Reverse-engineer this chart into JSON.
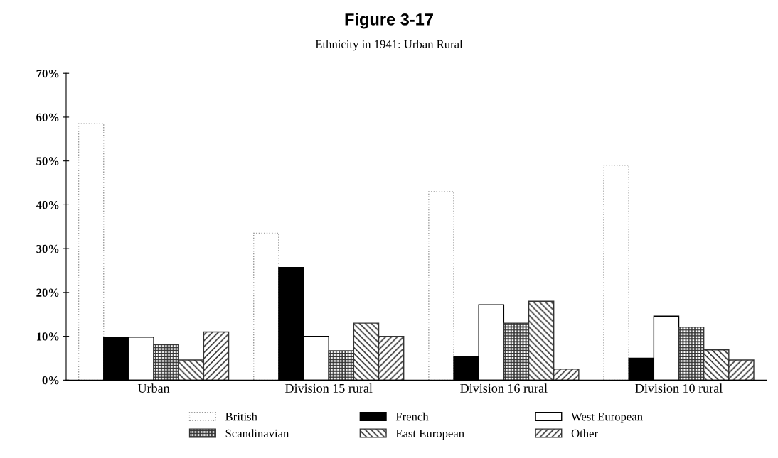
{
  "chart_data": {
    "type": "bar",
    "title": "Figure 3-17",
    "subtitle": "Ethnicity in 1941: Urban Rural",
    "categories": [
      "Urban",
      "Division 15 rural",
      "Division 16 rural",
      "Division 10 rural"
    ],
    "series": [
      {
        "name": "British",
        "color": "#ffffff",
        "values": [
          58.5,
          33.5,
          43,
          49
        ]
      },
      {
        "name": "French",
        "color": "#000000",
        "values": [
          9.8,
          25.7,
          5.3,
          5
        ]
      },
      {
        "name": "West European",
        "color": "#ffffff",
        "values": [
          9.8,
          10,
          17.2,
          14.6
        ]
      },
      {
        "name": "Scandinavian",
        "color": "#333333",
        "values": [
          8.2,
          6.7,
          13,
          12.1
        ]
      },
      {
        "name": "East European",
        "color": "#333333",
        "values": [
          4.6,
          13,
          18,
          6.9
        ]
      },
      {
        "name": "Other",
        "color": "#333333",
        "values": [
          11,
          10,
          2.5,
          4.6
        ]
      }
    ],
    "ylim": [
      0,
      70
    ],
    "yticks": [
      {
        "value": 0,
        "label": "0%"
      },
      {
        "value": 10,
        "label": "10%"
      },
      {
        "value": 20,
        "label": "20%"
      },
      {
        "value": 30,
        "label": "30%"
      },
      {
        "value": 40,
        "label": "40%"
      },
      {
        "value": 50,
        "label": "50%"
      },
      {
        "value": 60,
        "label": "60%"
      },
      {
        "value": 70,
        "label": "70%"
      }
    ],
    "grid": false,
    "legend": "bottom"
  }
}
